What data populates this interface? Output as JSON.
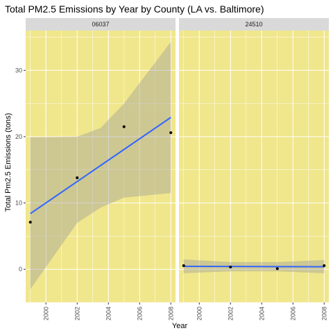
{
  "chart_data": {
    "type": "scatter",
    "title": "Total PM2.5 Emissions by Year by County (LA vs. Baltimore)",
    "xlabel": "Year",
    "ylabel": "Total Pm2.5 Emissions (tons)",
    "xlim": [
      1998.7,
      2008.3
    ],
    "ylim": [
      -5,
      36
    ],
    "x_ticks": [
      "2000",
      "2002",
      "2004",
      "2006",
      "2008"
    ],
    "y_ticks": [
      "0",
      "10",
      "20",
      "30"
    ],
    "colors": {
      "panel_background": "#f0e68c",
      "strip_background": "#d9d9d9",
      "grid": "#ffffff",
      "points": "#000000",
      "fit_line": "#3366ff",
      "confidence_band": "#999999"
    },
    "facets": [
      {
        "label": "06037",
        "points": [
          {
            "x": 1999,
            "y": 7.1
          },
          {
            "x": 2002,
            "y": 13.8
          },
          {
            "x": 2005,
            "y": 21.5
          },
          {
            "x": 2008,
            "y": 20.6
          }
        ],
        "fit": {
          "x": [
            1999,
            2008
          ],
          "y": [
            8.4,
            22.9
          ]
        },
        "band_upper": [
          [
            1999,
            19.9
          ],
          [
            2002,
            20.0
          ],
          [
            2003.5,
            21.3
          ],
          [
            2005,
            25.0
          ],
          [
            2008,
            34.3
          ]
        ],
        "band_lower": [
          [
            1999,
            -3.0
          ],
          [
            2002,
            7.0
          ],
          [
            2003.5,
            9.3
          ],
          [
            2005,
            10.8
          ],
          [
            2008,
            11.5
          ]
        ]
      },
      {
        "label": "24510",
        "points": [
          {
            "x": 1999,
            "y": 0.55
          },
          {
            "x": 2002,
            "y": 0.35
          },
          {
            "x": 2005,
            "y": 0.1
          },
          {
            "x": 2008,
            "y": 0.55
          }
        ],
        "fit": {
          "x": [
            1999,
            2008
          ],
          "y": [
            0.45,
            0.38
          ]
        },
        "band_upper": [
          [
            1999,
            1.5
          ],
          [
            2002,
            1.1
          ],
          [
            2005,
            1.1
          ],
          [
            2008,
            1.4
          ]
        ],
        "band_lower": [
          [
            1999,
            -0.6
          ],
          [
            2002,
            -0.3
          ],
          [
            2005,
            -0.3
          ],
          [
            2008,
            -0.6
          ]
        ]
      }
    ]
  }
}
